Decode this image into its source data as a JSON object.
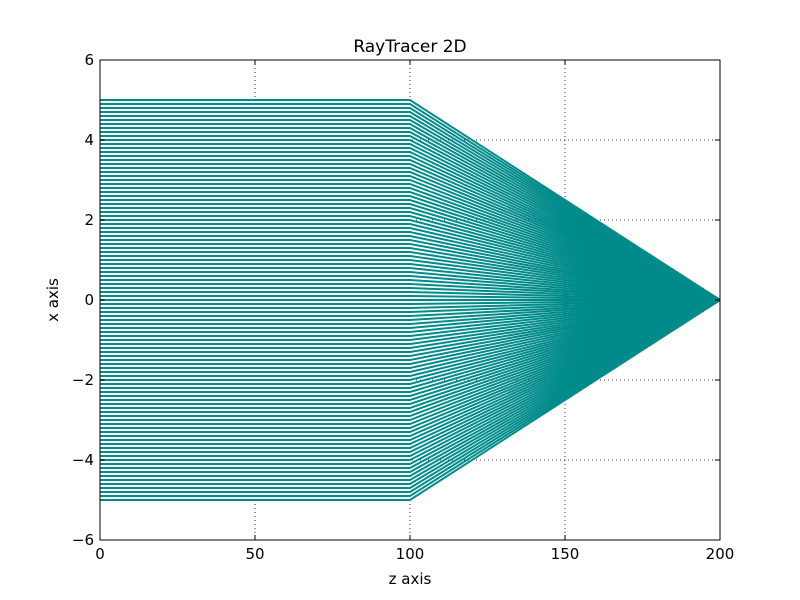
{
  "chart_data": {
    "type": "line",
    "title": "RayTracer 2D",
    "xlabel": "z axis",
    "ylabel": "x axis",
    "xlim": [
      0,
      200
    ],
    "ylim": [
      -6,
      6
    ],
    "xticks": [
      0,
      50,
      100,
      150,
      200
    ],
    "yticks": [
      -6,
      -4,
      -2,
      0,
      2,
      4,
      6
    ],
    "xtick_labels": [
      "0",
      "50",
      "100",
      "150",
      "200"
    ],
    "ytick_labels": [
      "−6",
      "−4",
      "−2",
      "0",
      "2",
      "4",
      "6"
    ],
    "grid": true,
    "lens_z": 100,
    "focus": [
      200,
      0
    ],
    "ray_color": "#008b8b",
    "ray_heights": [
      -5.0,
      -4.9,
      -4.8,
      -4.7,
      -4.6,
      -4.5,
      -4.4,
      -4.3,
      -4.2,
      -4.1,
      -4.0,
      -3.9,
      -3.8,
      -3.7,
      -3.6,
      -3.5,
      -3.4,
      -3.3,
      -3.2,
      -3.1,
      -3.0,
      -2.9,
      -2.8,
      -2.7,
      -2.6,
      -2.5,
      -2.4,
      -2.3,
      -2.2,
      -2.1,
      -2.0,
      -1.9,
      -1.8,
      -1.7,
      -1.6,
      -1.5,
      -1.4,
      -1.3,
      -1.2,
      -1.1,
      -1.0,
      -0.9,
      -0.8,
      -0.7,
      -0.6,
      -0.5,
      -0.4,
      -0.3,
      -0.2,
      -0.1,
      0.0,
      0.1,
      0.2,
      0.3,
      0.4,
      0.5,
      0.6,
      0.7,
      0.8,
      0.9,
      1.0,
      1.1,
      1.2,
      1.3,
      1.4,
      1.5,
      1.6,
      1.7,
      1.8,
      1.9,
      2.0,
      2.1,
      2.2,
      2.3,
      2.4,
      2.5,
      2.6,
      2.7,
      2.8,
      2.9,
      3.0,
      3.1,
      3.2,
      3.3,
      3.4,
      3.5,
      3.6,
      3.7,
      3.8,
      3.9,
      4.0,
      4.1,
      4.2,
      4.3,
      4.4,
      4.5,
      4.6,
      4.7,
      4.8,
      4.9,
      5.0
    ]
  }
}
